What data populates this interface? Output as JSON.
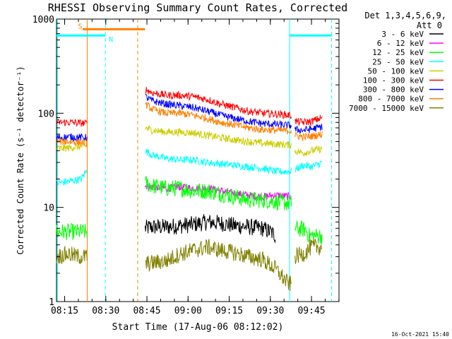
{
  "chart_data": {
    "type": "line",
    "title": "RHESSI Observing Summary Count Rates, Corrected",
    "xlabel": "Start Time (17-Aug-06 08:12:02)",
    "ylabel": "Corrected Count Rate (s⁻¹ detector⁻¹)",
    "ylog": true,
    "ylim": [
      1,
      1000
    ],
    "xlim_minutes": [
      0,
      103
    ],
    "x_ticks": [
      {
        "label": "08:15",
        "minute": 2.97
      },
      {
        "label": "08:30",
        "minute": 17.97
      },
      {
        "label": "08:45",
        "minute": 32.97
      },
      {
        "label": "09:00",
        "minute": 47.97
      },
      {
        "label": "09:15",
        "minute": 62.97
      },
      {
        "label": "09:30",
        "minute": 77.97
      },
      {
        "label": "09:45",
        "minute": 92.97
      }
    ],
    "y_ticks": [
      "1",
      "10",
      "100",
      "1000"
    ],
    "legend_title_1": "Det 1,3,4,5,6,9,",
    "legend_title_2": "Att 0",
    "legend_position": "right",
    "segments": [
      [
        0,
        11.2
      ],
      [
        32.3,
        85.7
      ],
      [
        86.8,
        97.0
      ]
    ],
    "series": [
      {
        "name": "3 - 6 keV",
        "color": "#000000",
        "points": [
          [
            32.3,
            6.0
          ],
          [
            35,
            6.2
          ],
          [
            40,
            6.2
          ],
          [
            45,
            6.4
          ],
          [
            50,
            6.6
          ],
          [
            55,
            7.0
          ],
          [
            60,
            6.8
          ],
          [
            65,
            6.4
          ],
          [
            70,
            6.2
          ],
          [
            75,
            6.0
          ],
          [
            78,
            5.5
          ],
          [
            80,
            5.0
          ]
        ]
      },
      {
        "name": "6 - 12 keV",
        "color": "#ff00ff",
        "points": [
          [
            32.3,
            17
          ],
          [
            35,
            16.5
          ],
          [
            40,
            16
          ],
          [
            45,
            16.5
          ],
          [
            50,
            16
          ],
          [
            55,
            16
          ],
          [
            60,
            15
          ],
          [
            65,
            14
          ],
          [
            70,
            13.5
          ],
          [
            75,
            13
          ],
          [
            80,
            13.5
          ],
          [
            85.7,
            13
          ]
        ]
      },
      {
        "name": "12 - 25 keV",
        "color": "#00ff00",
        "points": [
          [
            0,
            5.5
          ],
          [
            11.2,
            5.5
          ],
          [
            32.3,
            18
          ],
          [
            35,
            17
          ],
          [
            40,
            16
          ],
          [
            45,
            16
          ],
          [
            50,
            15
          ],
          [
            55,
            15
          ],
          [
            60,
            14
          ],
          [
            65,
            13
          ],
          [
            70,
            12
          ],
          [
            75,
            12
          ],
          [
            80,
            11.5
          ],
          [
            85.7,
            11
          ],
          [
            86.8,
            6
          ],
          [
            91,
            5.8
          ],
          [
            92,
            5.0
          ],
          [
            97,
            5.0
          ]
        ]
      },
      {
        "name": "25 - 50 keV",
        "color": "#00ffff",
        "points": [
          [
            0,
            18
          ],
          [
            5,
            19
          ],
          [
            9,
            20
          ],
          [
            11.2,
            25
          ],
          [
            32.3,
            40
          ],
          [
            35,
            36
          ],
          [
            40,
            33
          ],
          [
            45,
            32
          ],
          [
            50,
            32
          ],
          [
            55,
            30
          ],
          [
            60,
            29
          ],
          [
            65,
            28
          ],
          [
            70,
            27
          ],
          [
            75,
            26
          ],
          [
            80,
            24
          ],
          [
            85.7,
            24
          ],
          [
            86.8,
            25
          ],
          [
            90,
            28
          ],
          [
            93,
            27
          ],
          [
            97,
            30
          ]
        ]
      },
      {
        "name": "50 - 100 keV",
        "color": "#cccc00",
        "points": [
          [
            0,
            42
          ],
          [
            5,
            43
          ],
          [
            11.2,
            45
          ],
          [
            32.3,
            70
          ],
          [
            35,
            66
          ],
          [
            40,
            63
          ],
          [
            45,
            63
          ],
          [
            50,
            62
          ],
          [
            55,
            58
          ],
          [
            60,
            55
          ],
          [
            65,
            52
          ],
          [
            70,
            50
          ],
          [
            75,
            48
          ],
          [
            80,
            47
          ],
          [
            85.7,
            46
          ],
          [
            86.8,
            40
          ],
          [
            90,
            38
          ],
          [
            93,
            40
          ],
          [
            97,
            42
          ]
        ]
      },
      {
        "name": "100 - 300 keV",
        "color": "#ff0000",
        "points": [
          [
            0,
            80
          ],
          [
            5,
            80
          ],
          [
            11.2,
            78
          ],
          [
            32.3,
            180
          ],
          [
            35,
            165
          ],
          [
            40,
            155
          ],
          [
            45,
            155
          ],
          [
            50,
            150
          ],
          [
            55,
            140
          ],
          [
            60,
            125
          ],
          [
            65,
            115
          ],
          [
            70,
            105
          ],
          [
            75,
            100
          ],
          [
            80,
            98
          ],
          [
            85.7,
            95
          ],
          [
            86.8,
            82
          ],
          [
            90,
            80
          ],
          [
            93,
            82
          ],
          [
            97,
            90
          ]
        ]
      },
      {
        "name": "300 - 800 keV",
        "color": "#0000ff",
        "points": [
          [
            0,
            55
          ],
          [
            5,
            56
          ],
          [
            11.2,
            55
          ],
          [
            32.3,
            150
          ],
          [
            35,
            135
          ],
          [
            40,
            125
          ],
          [
            45,
            120
          ],
          [
            50,
            115
          ],
          [
            55,
            105
          ],
          [
            60,
            95
          ],
          [
            65,
            88
          ],
          [
            70,
            82
          ],
          [
            75,
            78
          ],
          [
            80,
            76
          ],
          [
            85.7,
            74
          ],
          [
            86.8,
            67
          ],
          [
            90,
            66
          ],
          [
            93,
            68
          ],
          [
            97,
            72
          ]
        ]
      },
      {
        "name": "800 - 7000 keV",
        "color": "#ff8000",
        "points": [
          [
            0,
            50
          ],
          [
            5,
            50
          ],
          [
            11.2,
            48
          ],
          [
            32.3,
            125
          ],
          [
            35,
            110
          ],
          [
            40,
            100
          ],
          [
            45,
            100
          ],
          [
            50,
            95
          ],
          [
            55,
            88
          ],
          [
            60,
            80
          ],
          [
            65,
            75
          ],
          [
            70,
            70
          ],
          [
            75,
            67
          ],
          [
            80,
            66
          ],
          [
            85.7,
            65
          ],
          [
            86.8,
            58
          ],
          [
            90,
            56
          ],
          [
            93,
            57
          ],
          [
            97,
            60
          ]
        ]
      },
      {
        "name": "7000 - 15000 keV",
        "color": "#808000",
        "points": [
          [
            0,
            3.0
          ],
          [
            4,
            3.2
          ],
          [
            8,
            3.0
          ],
          [
            11.2,
            3.0
          ],
          [
            32.3,
            2.5
          ],
          [
            36,
            2.6
          ],
          [
            40,
            2.7
          ],
          [
            45,
            3.2
          ],
          [
            50,
            3.5
          ],
          [
            55,
            3.8
          ],
          [
            60,
            3.5
          ],
          [
            65,
            3.3
          ],
          [
            70,
            3.0
          ],
          [
            75,
            2.8
          ],
          [
            80,
            2.2
          ],
          [
            84,
            1.6
          ],
          [
            85.7,
            1.5
          ],
          [
            86.8,
            3.0
          ],
          [
            90,
            3.2
          ],
          [
            93,
            3.8
          ],
          [
            97,
            3.8
          ]
        ]
      }
    ],
    "annotations": [
      {
        "label": "S",
        "color": "#ff8000",
        "line_minute": 11.2,
        "bar": [
          9.5,
          32.3
        ],
        "bar_value": 780
      },
      {
        "label": "N",
        "color": "#00ffff",
        "line_minute": 17.8,
        "bar": [
          0,
          17.8
        ],
        "bar_value": 670
      }
    ],
    "vlines": [
      {
        "minute": 0.3,
        "color": "#00ffff",
        "style": "solid"
      },
      {
        "minute": 11.2,
        "color": "#ff8000",
        "style": "solid"
      },
      {
        "minute": 17.8,
        "color": "#00ffff",
        "style": "dashed"
      },
      {
        "minute": 29.6,
        "color": "#ff8000",
        "style": "dashed"
      },
      {
        "minute": 85.0,
        "color": "#00ffff",
        "style": "solid"
      },
      {
        "minute": 100.3,
        "color": "#00ffff",
        "style": "dashed"
      }
    ],
    "extra_bars": [
      {
        "color": "#00ffff",
        "range": [
          85.0,
          100.3
        ],
        "value": 670
      }
    ],
    "timestamp": "16-Oct-2021 15:40"
  }
}
